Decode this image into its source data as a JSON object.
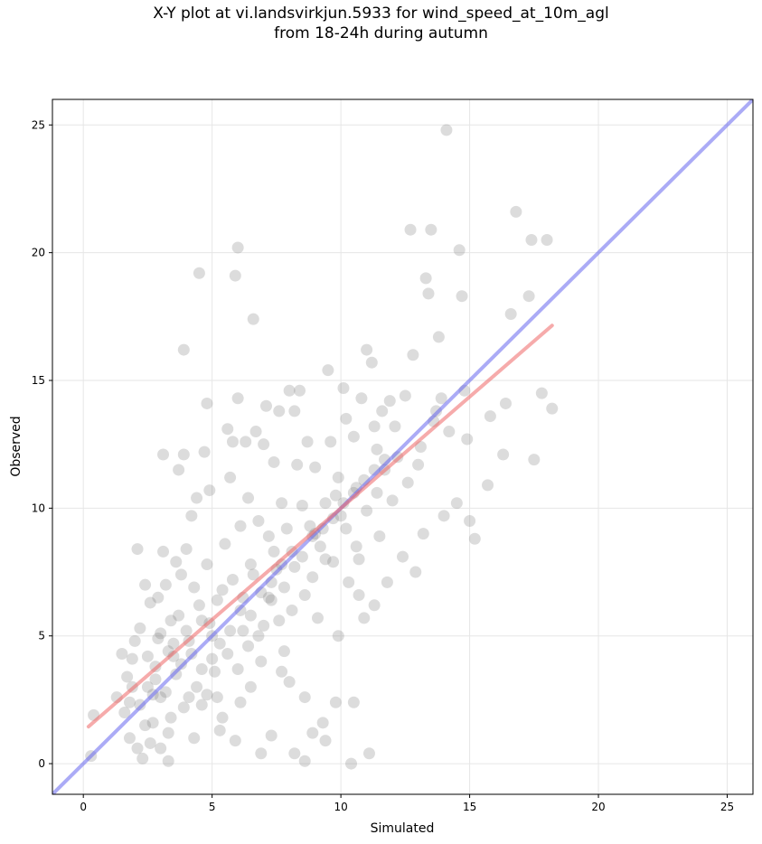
{
  "chart_data": {
    "type": "scatter",
    "title_line1": "X-Y plot at vi.landsvirkjun.5933 for wind_speed_at_10m_agl",
    "title_line2": "from 18-24h during autumn",
    "xlabel": "Simulated",
    "ylabel": "Observed",
    "xlim": [
      -1.2,
      26
    ],
    "ylim": [
      -1.2,
      26
    ],
    "xticks": [
      0,
      5,
      10,
      15,
      20,
      25
    ],
    "yticks": [
      0,
      5,
      10,
      15,
      20,
      25
    ],
    "grid": true,
    "colors": {
      "points": "#808080",
      "identity_line": "#6666ee",
      "fit_line": "#ee6666"
    },
    "identity_line": {
      "x": [
        -1.2,
        26
      ],
      "y": [
        -1.2,
        26
      ]
    },
    "fit_line": {
      "x": [
        0.2,
        18.2
      ],
      "y": [
        1.45,
        17.15
      ]
    },
    "points": [
      [
        0.3,
        0.3
      ],
      [
        0.4,
        1.9
      ],
      [
        1.3,
        2.6
      ],
      [
        1.5,
        4.3
      ],
      [
        1.7,
        3.4
      ],
      [
        1.8,
        2.4
      ],
      [
        1.8,
        1.0
      ],
      [
        1.9,
        4.1
      ],
      [
        2.0,
        4.8
      ],
      [
        2.1,
        8.4
      ],
      [
        2.2,
        5.3
      ],
      [
        2.3,
        0.2
      ],
      [
        2.4,
        1.5
      ],
      [
        2.4,
        7.0
      ],
      [
        2.5,
        4.2
      ],
      [
        2.6,
        6.3
      ],
      [
        2.7,
        2.7
      ],
      [
        2.8,
        3.3
      ],
      [
        2.9,
        4.9
      ],
      [
        3.0,
        5.1
      ],
      [
        3.0,
        2.6
      ],
      [
        3.1,
        8.3
      ],
      [
        3.1,
        12.1
      ],
      [
        3.2,
        7.0
      ],
      [
        3.3,
        0.1
      ],
      [
        3.4,
        5.6
      ],
      [
        3.5,
        4.2
      ],
      [
        3.6,
        7.9
      ],
      [
        3.7,
        11.5
      ],
      [
        3.8,
        7.4
      ],
      [
        3.9,
        12.1
      ],
      [
        3.9,
        16.2
      ],
      [
        4.0,
        8.4
      ],
      [
        4.0,
        5.2
      ],
      [
        4.1,
        2.6
      ],
      [
        4.2,
        9.7
      ],
      [
        4.3,
        6.9
      ],
      [
        4.4,
        10.4
      ],
      [
        4.5,
        19.2
      ],
      [
        4.6,
        5.6
      ],
      [
        4.7,
        12.2
      ],
      [
        4.8,
        14.1
      ],
      [
        4.8,
        7.8
      ],
      [
        4.9,
        10.7
      ],
      [
        5.0,
        5.0
      ],
      [
        5.1,
        3.6
      ],
      [
        5.2,
        6.4
      ],
      [
        5.3,
        1.3
      ],
      [
        5.5,
        8.6
      ],
      [
        5.6,
        13.1
      ],
      [
        5.7,
        11.2
      ],
      [
        5.8,
        12.6
      ],
      [
        5.9,
        19.1
      ],
      [
        6.0,
        20.2
      ],
      [
        6.0,
        14.3
      ],
      [
        6.1,
        9.3
      ],
      [
        6.2,
        6.5
      ],
      [
        6.3,
        12.6
      ],
      [
        6.4,
        10.4
      ],
      [
        6.5,
        7.8
      ],
      [
        6.6,
        17.4
      ],
      [
        6.7,
        13.0
      ],
      [
        6.8,
        9.5
      ],
      [
        6.9,
        0.4
      ],
      [
        7.0,
        12.5
      ],
      [
        7.1,
        14.0
      ],
      [
        7.2,
        8.9
      ],
      [
        7.3,
        6.4
      ],
      [
        7.4,
        11.8
      ],
      [
        7.5,
        7.6
      ],
      [
        7.6,
        13.8
      ],
      [
        7.7,
        10.2
      ],
      [
        7.8,
        4.4
      ],
      [
        7.9,
        9.2
      ],
      [
        8.0,
        14.6
      ],
      [
        8.0,
        3.2
      ],
      [
        8.1,
        6.0
      ],
      [
        8.2,
        13.8
      ],
      [
        8.3,
        11.7
      ],
      [
        8.4,
        14.6
      ],
      [
        8.5,
        10.1
      ],
      [
        8.6,
        0.1
      ],
      [
        8.7,
        12.6
      ],
      [
        8.8,
        9.3
      ],
      [
        8.9,
        7.3
      ],
      [
        9.0,
        11.6
      ],
      [
        9.1,
        5.7
      ],
      [
        9.2,
        8.5
      ],
      [
        9.3,
        1.6
      ],
      [
        9.4,
        10.2
      ],
      [
        9.5,
        15.4
      ],
      [
        9.6,
        12.6
      ],
      [
        9.7,
        7.9
      ],
      [
        9.8,
        2.4
      ],
      [
        9.9,
        11.2
      ],
      [
        10.0,
        9.7
      ],
      [
        10.1,
        14.7
      ],
      [
        10.2,
        13.5
      ],
      [
        10.3,
        7.1
      ],
      [
        10.4,
        0.0
      ],
      [
        10.5,
        12.8
      ],
      [
        10.6,
        10.8
      ],
      [
        10.7,
        8.0
      ],
      [
        10.8,
        14.3
      ],
      [
        10.9,
        5.7
      ],
      [
        11.0,
        16.2
      ],
      [
        11.1,
        0.4
      ],
      [
        11.2,
        15.7
      ],
      [
        11.3,
        13.2
      ],
      [
        11.4,
        10.6
      ],
      [
        11.5,
        8.9
      ],
      [
        11.6,
        13.8
      ],
      [
        11.7,
        11.5
      ],
      [
        11.8,
        7.1
      ],
      [
        11.9,
        14.2
      ],
      [
        12.0,
        10.3
      ],
      [
        12.2,
        12.0
      ],
      [
        12.4,
        8.1
      ],
      [
        12.5,
        14.4
      ],
      [
        12.7,
        20.9
      ],
      [
        12.8,
        16.0
      ],
      [
        12.9,
        7.5
      ],
      [
        13.0,
        11.7
      ],
      [
        13.2,
        9.0
      ],
      [
        13.3,
        19.0
      ],
      [
        13.4,
        18.4
      ],
      [
        13.5,
        20.9
      ],
      [
        13.6,
        13.4
      ],
      [
        13.8,
        16.7
      ],
      [
        13.9,
        14.3
      ],
      [
        14.0,
        9.7
      ],
      [
        14.1,
        24.8
      ],
      [
        14.2,
        13.0
      ],
      [
        14.5,
        10.2
      ],
      [
        14.6,
        20.1
      ],
      [
        14.7,
        18.3
      ],
      [
        14.8,
        14.6
      ],
      [
        14.9,
        12.7
      ],
      [
        15.0,
        9.5
      ],
      [
        15.2,
        8.8
      ],
      [
        15.7,
        10.9
      ],
      [
        15.8,
        13.6
      ],
      [
        16.3,
        12.1
      ],
      [
        16.4,
        14.1
      ],
      [
        16.6,
        17.6
      ],
      [
        16.8,
        21.6
      ],
      [
        17.3,
        18.3
      ],
      [
        17.4,
        20.5
      ],
      [
        17.5,
        11.9
      ],
      [
        17.8,
        14.5
      ],
      [
        18.0,
        20.5
      ],
      [
        18.2,
        13.9
      ],
      [
        2.2,
        2.3
      ],
      [
        2.6,
        0.8
      ],
      [
        3.4,
        1.8
      ],
      [
        3.6,
        3.5
      ],
      [
        4.3,
        1.0
      ],
      [
        4.6,
        2.3
      ],
      [
        5.4,
        1.8
      ],
      [
        5.9,
        0.9
      ],
      [
        6.1,
        2.4
      ],
      [
        6.5,
        3.0
      ],
      [
        6.9,
        4.0
      ],
      [
        7.3,
        1.1
      ],
      [
        7.7,
        3.6
      ],
      [
        8.2,
        0.4
      ],
      [
        8.6,
        2.6
      ],
      [
        8.9,
        1.2
      ],
      [
        9.4,
        0.9
      ],
      [
        9.9,
        5.0
      ],
      [
        10.5,
        2.4
      ],
      [
        10.7,
        6.6
      ],
      [
        11.3,
        6.2
      ],
      [
        2.9,
        6.5
      ],
      [
        3.3,
        4.4
      ],
      [
        3.7,
        5.8
      ],
      [
        4.1,
        4.8
      ],
      [
        4.5,
        6.2
      ],
      [
        4.9,
        5.5
      ],
      [
        5.3,
        4.7
      ],
      [
        5.7,
        5.2
      ],
      [
        6.1,
        6.0
      ],
      [
        6.5,
        5.8
      ],
      [
        6.9,
        6.7
      ],
      [
        7.3,
        7.1
      ],
      [
        7.7,
        7.8
      ],
      [
        8.1,
        8.3
      ],
      [
        8.5,
        8.1
      ],
      [
        8.9,
        8.9
      ],
      [
        9.3,
        9.2
      ],
      [
        9.7,
        9.6
      ],
      [
        10.1,
        10.2
      ],
      [
        10.5,
        10.6
      ],
      [
        10.9,
        11.1
      ],
      [
        11.3,
        11.5
      ],
      [
        11.7,
        11.9
      ],
      [
        2.5,
        3.0
      ],
      [
        2.8,
        3.8
      ],
      [
        3.2,
        2.8
      ],
      [
        3.5,
        4.7
      ],
      [
        3.8,
        3.9
      ],
      [
        4.2,
        4.3
      ],
      [
        4.6,
        3.7
      ],
      [
        5.0,
        4.1
      ],
      [
        5.4,
        6.8
      ],
      [
        5.8,
        7.2
      ],
      [
        6.2,
        5.2
      ],
      [
        6.6,
        7.4
      ],
      [
        7.0,
        5.4
      ],
      [
        7.4,
        8.3
      ],
      [
        7.8,
        6.9
      ],
      [
        8.2,
        7.7
      ],
      [
        8.6,
        6.6
      ],
      [
        9.0,
        9.0
      ],
      [
        9.4,
        8.0
      ],
      [
        9.8,
        10.5
      ],
      [
        10.2,
        9.2
      ],
      [
        10.6,
        8.5
      ],
      [
        11.0,
        9.9
      ],
      [
        11.4,
        12.3
      ],
      [
        12.1,
        13.2
      ],
      [
        12.6,
        11.0
      ],
      [
        13.1,
        12.4
      ],
      [
        13.7,
        13.8
      ],
      [
        1.6,
        2.0
      ],
      [
        1.9,
        3.0
      ],
      [
        2.1,
        0.6
      ],
      [
        2.7,
        1.6
      ],
      [
        3.0,
        0.6
      ],
      [
        3.3,
        1.2
      ],
      [
        3.9,
        2.2
      ],
      [
        4.4,
        3.0
      ],
      [
        4.8,
        2.7
      ],
      [
        5.2,
        2.6
      ],
      [
        5.6,
        4.3
      ],
      [
        6.0,
        3.7
      ],
      [
        6.4,
        4.6
      ],
      [
        6.8,
        5.0
      ],
      [
        7.2,
        6.5
      ],
      [
        7.6,
        5.6
      ]
    ]
  }
}
